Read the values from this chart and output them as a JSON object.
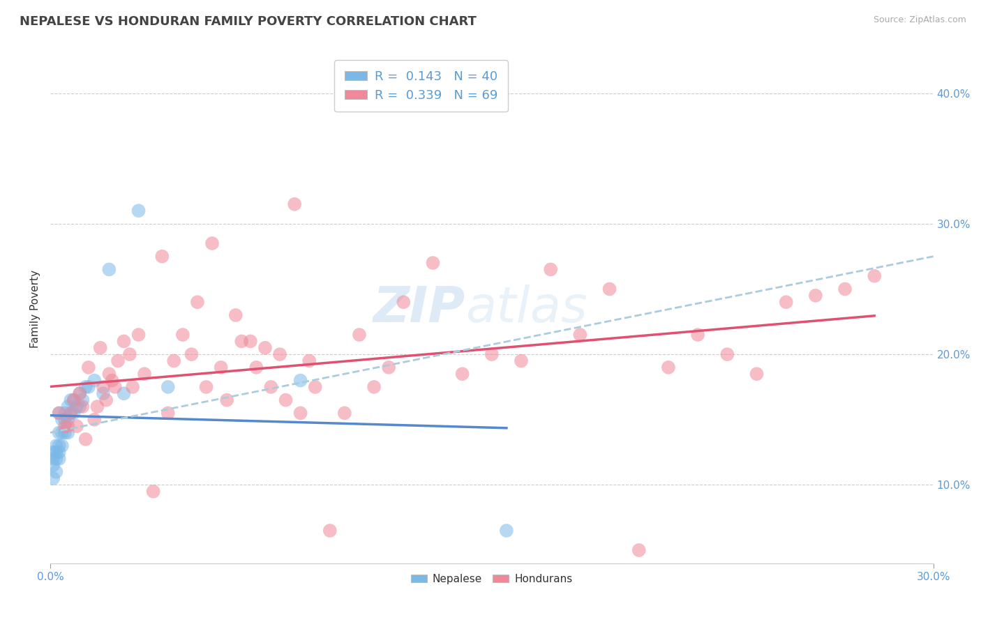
{
  "title": "NEPALESE VS HONDURAN FAMILY POVERTY CORRELATION CHART",
  "source_text": "Source: ZipAtlas.com",
  "ylabel_label": "Family Poverty",
  "xlim": [
    0.0,
    0.3
  ],
  "ylim": [
    0.04,
    0.43
  ],
  "nepalese_color": "#7ab8e8",
  "honduran_color": "#f08898",
  "nepalese_line_color": "#5588cc",
  "honduran_line_color": "#e05070",
  "dashed_line_color": "#aaccdd",
  "legend_R_nepalese": "0.143",
  "legend_N_nepalese": "40",
  "legend_R_honduran": "0.339",
  "legend_N_honduran": "69",
  "nepalese_x": [
    0.001,
    0.001,
    0.001,
    0.001,
    0.002,
    0.002,
    0.002,
    0.002,
    0.003,
    0.003,
    0.003,
    0.003,
    0.003,
    0.004,
    0.004,
    0.004,
    0.005,
    0.005,
    0.005,
    0.006,
    0.006,
    0.006,
    0.007,
    0.007,
    0.008,
    0.008,
    0.009,
    0.01,
    0.01,
    0.011,
    0.012,
    0.013,
    0.015,
    0.018,
    0.02,
    0.025,
    0.03,
    0.04,
    0.085,
    0.155
  ],
  "nepalese_y": [
    0.105,
    0.115,
    0.12,
    0.125,
    0.11,
    0.12,
    0.125,
    0.13,
    0.12,
    0.125,
    0.13,
    0.14,
    0.155,
    0.13,
    0.14,
    0.15,
    0.14,
    0.15,
    0.155,
    0.14,
    0.15,
    0.16,
    0.155,
    0.165,
    0.155,
    0.165,
    0.16,
    0.16,
    0.17,
    0.165,
    0.175,
    0.175,
    0.18,
    0.17,
    0.265,
    0.17,
    0.31,
    0.175,
    0.18,
    0.065
  ],
  "honduran_x": [
    0.003,
    0.005,
    0.006,
    0.007,
    0.008,
    0.009,
    0.01,
    0.011,
    0.012,
    0.013,
    0.015,
    0.016,
    0.017,
    0.018,
    0.019,
    0.02,
    0.021,
    0.022,
    0.023,
    0.025,
    0.027,
    0.028,
    0.03,
    0.032,
    0.035,
    0.038,
    0.04,
    0.042,
    0.045,
    0.048,
    0.05,
    0.053,
    0.055,
    0.058,
    0.06,
    0.063,
    0.065,
    0.068,
    0.07,
    0.073,
    0.075,
    0.078,
    0.08,
    0.083,
    0.085,
    0.088,
    0.09,
    0.095,
    0.1,
    0.105,
    0.11,
    0.115,
    0.12,
    0.13,
    0.14,
    0.15,
    0.16,
    0.17,
    0.18,
    0.19,
    0.2,
    0.21,
    0.22,
    0.23,
    0.24,
    0.25,
    0.26,
    0.27,
    0.28
  ],
  "honduran_y": [
    0.155,
    0.145,
    0.145,
    0.155,
    0.165,
    0.145,
    0.17,
    0.16,
    0.135,
    0.19,
    0.15,
    0.16,
    0.205,
    0.175,
    0.165,
    0.185,
    0.18,
    0.175,
    0.195,
    0.21,
    0.2,
    0.175,
    0.215,
    0.185,
    0.095,
    0.275,
    0.155,
    0.195,
    0.215,
    0.2,
    0.24,
    0.175,
    0.285,
    0.19,
    0.165,
    0.23,
    0.21,
    0.21,
    0.19,
    0.205,
    0.175,
    0.2,
    0.165,
    0.315,
    0.155,
    0.195,
    0.175,
    0.065,
    0.155,
    0.215,
    0.175,
    0.19,
    0.24,
    0.27,
    0.185,
    0.2,
    0.195,
    0.265,
    0.215,
    0.25,
    0.05,
    0.19,
    0.215,
    0.2,
    0.185,
    0.24,
    0.245,
    0.25,
    0.26
  ],
  "watermark_zip": "ZIP",
  "watermark_atlas": "atlas",
  "background_color": "#ffffff",
  "grid_color": "#cccccc"
}
